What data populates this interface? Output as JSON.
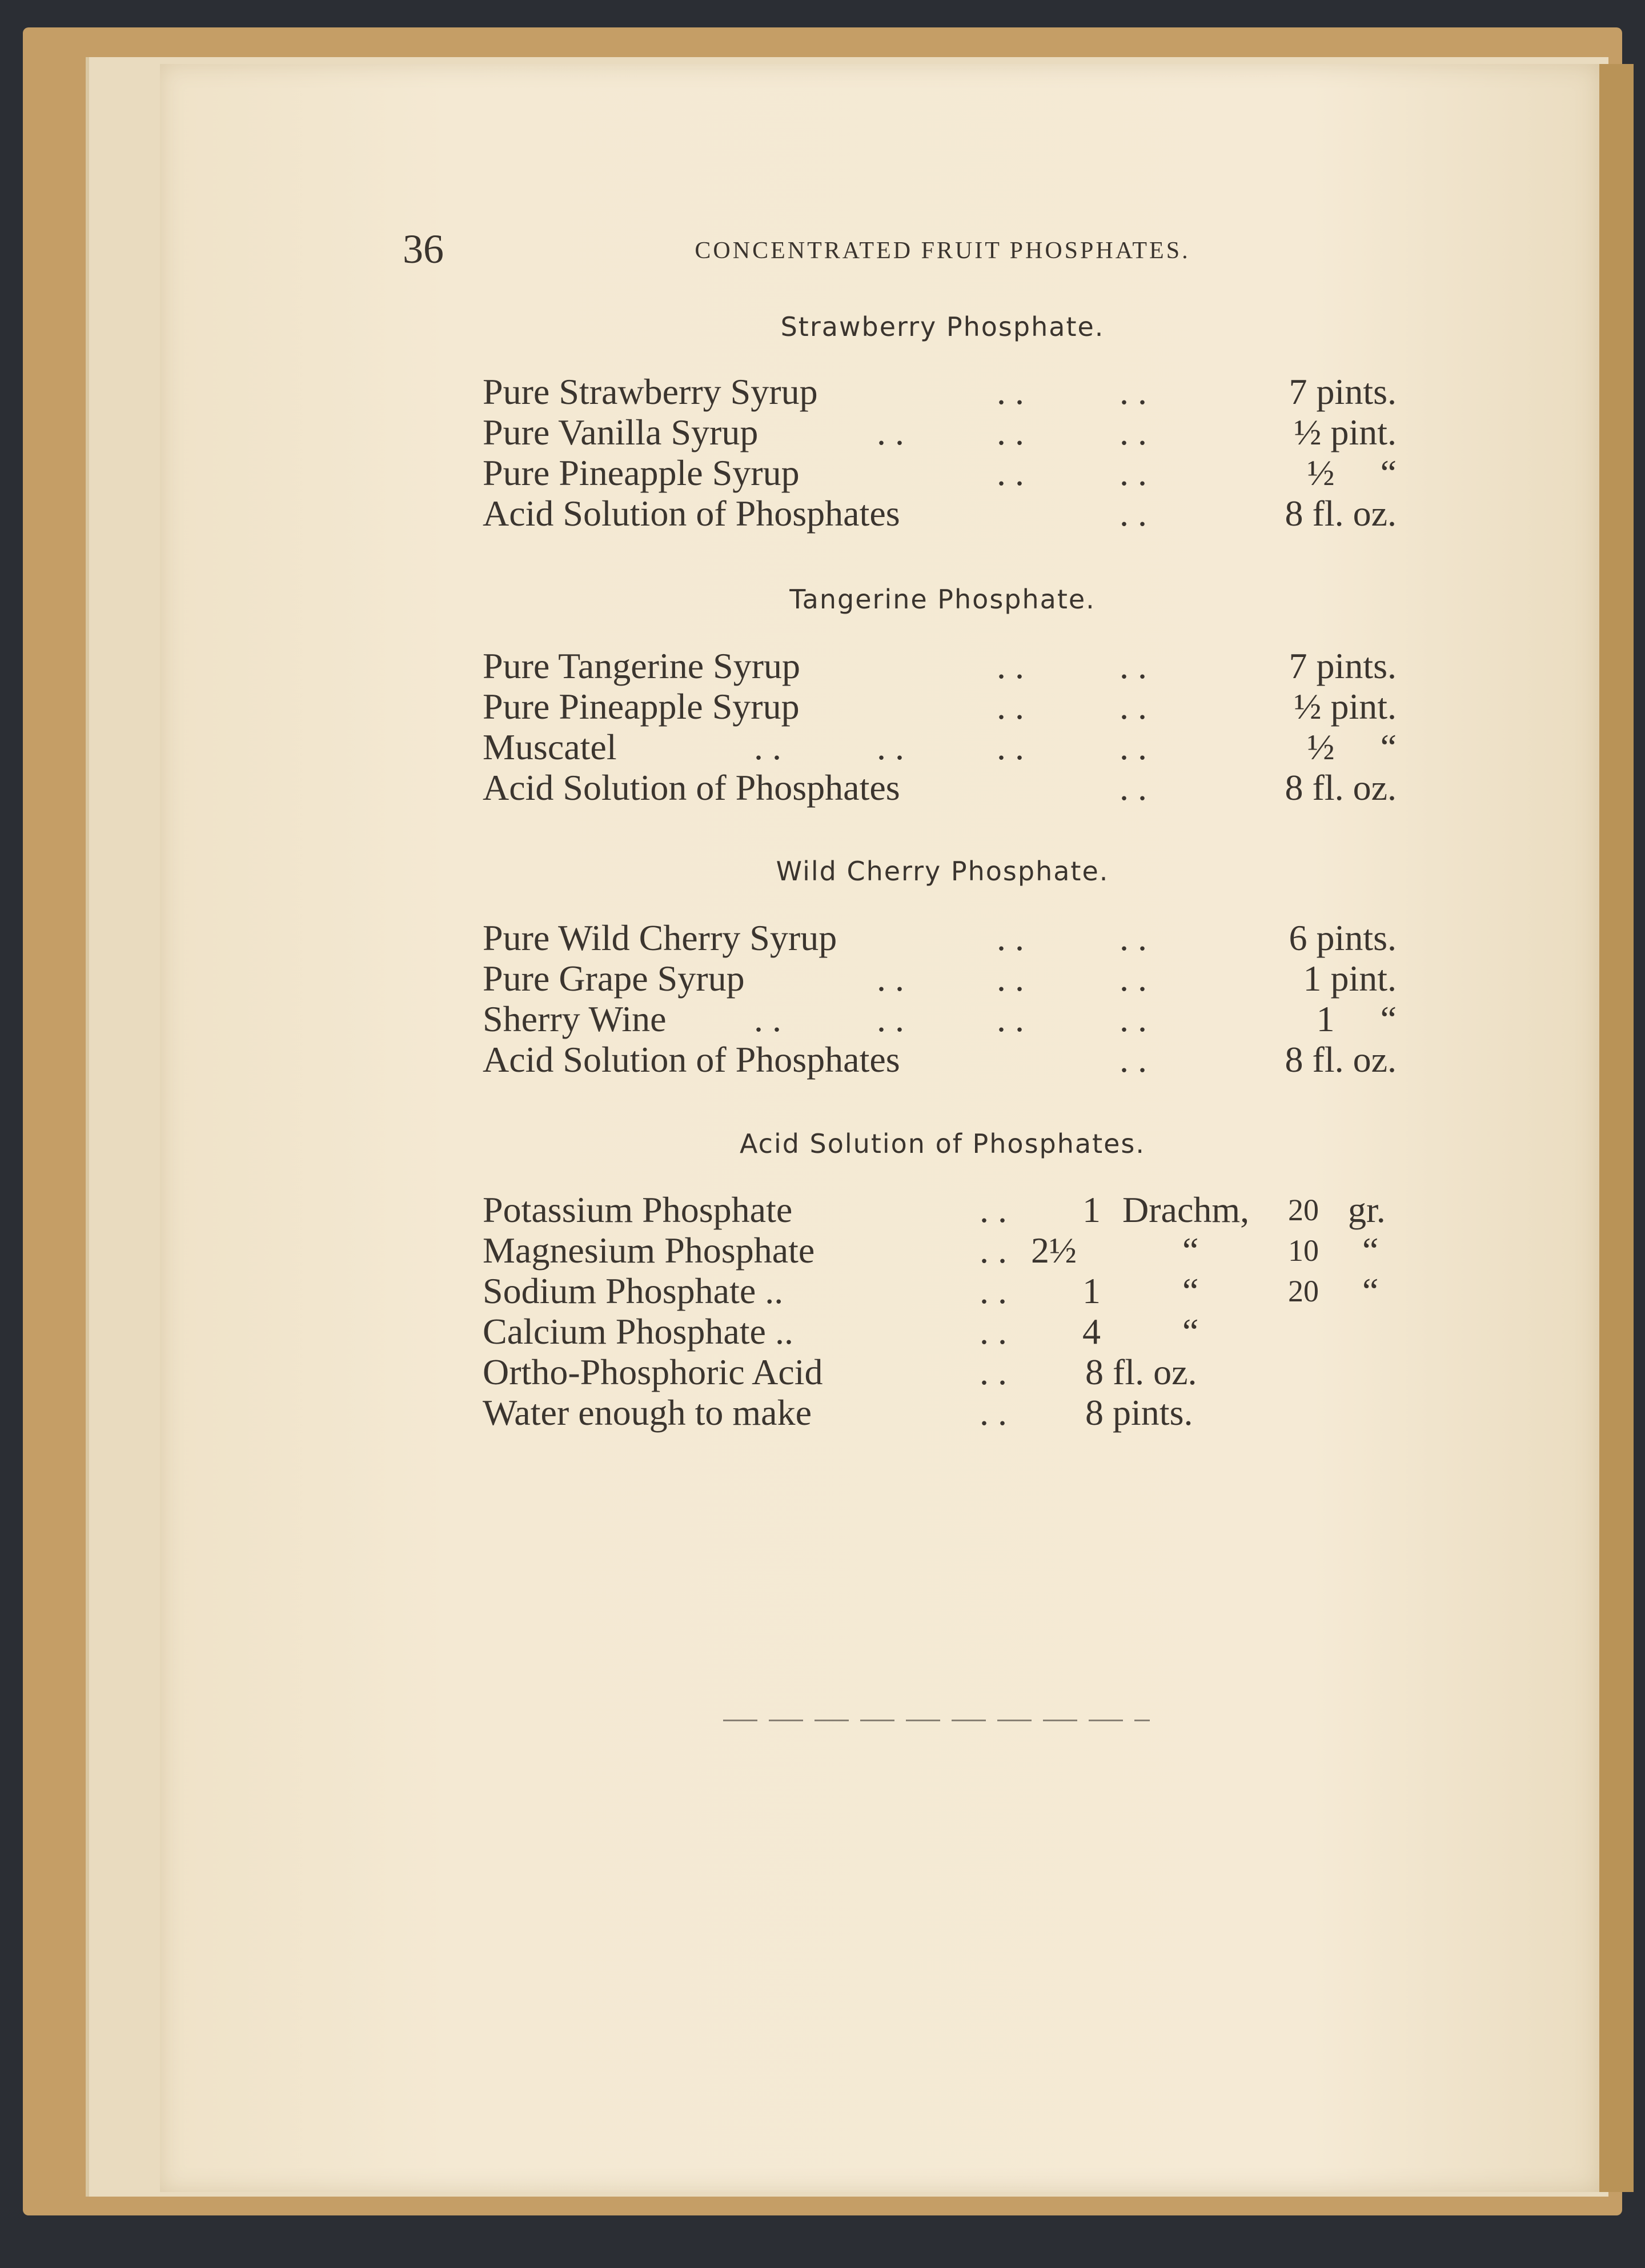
{
  "page_number": "36",
  "running_head": "CONCENTRATED FRUIT PHOSPHATES.",
  "sections": [
    {
      "title": "Strawberry Phosphate.",
      "rows": [
        {
          "name": "Pure Strawberry Syrup",
          "leaders": 2,
          "amount": "7 pints."
        },
        {
          "name": "Pure Vanilla Syrup",
          "leaders": 3,
          "amount": "½ pint."
        },
        {
          "name": "Pure Pineapple Syrup",
          "leaders": 2,
          "amount": "½     “"
        },
        {
          "name": "Acid Solution of Phosphates",
          "leaders": 1,
          "amount": "8 fl. oz."
        }
      ]
    },
    {
      "title": "Tangerine Phosphate.",
      "rows": [
        {
          "name": "Pure Tangerine Syrup",
          "leaders": 2,
          "amount": "7 pints."
        },
        {
          "name": "Pure Pineapple Syrup",
          "leaders": 2,
          "amount": "½ pint."
        },
        {
          "name": "Muscatel",
          "leaders": 4,
          "amount": "½     “"
        },
        {
          "name": "Acid Solution of Phosphates",
          "leaders": 1,
          "amount": "8 fl. oz."
        }
      ]
    },
    {
      "title": "Wild Cherry Phosphate.",
      "rows": [
        {
          "name": "Pure Wild Cherry Syrup",
          "leaders": 2,
          "amount": "6 pints."
        },
        {
          "name": "Pure Grape Syrup",
          "leaders": 3,
          "amount": "1 pint."
        },
        {
          "name": "Sherry Wine",
          "leaders": 4,
          "amount": "1     “"
        },
        {
          "name": "Acid Solution of Phosphates",
          "leaders": 1,
          "amount": "8 fl. oz."
        }
      ]
    }
  ],
  "acid_section": {
    "title": "Acid Solution of Phosphates.",
    "rows": [
      {
        "name": "Potassium Phosphate",
        "qty": "1",
        "unit": "Drachm,",
        "grains": "20",
        "grain_unit": "gr."
      },
      {
        "name": "Magnesium Phosphate",
        "qty": "2½",
        "unit": "“",
        "grains": "10",
        "grain_unit": "“"
      },
      {
        "name": "Sodium Phosphate ..",
        "qty": "1",
        "unit": "“",
        "grains": "20",
        "grain_unit": "“"
      },
      {
        "name": "Calcium Phosphate ..",
        "qty": "4",
        "unit": "“",
        "grains": "",
        "grain_unit": ""
      },
      {
        "name": "Ortho-Phosphoric Acid",
        "qty": "8 fl. oz.",
        "unit": "",
        "grains": "",
        "grain_unit": ""
      },
      {
        "name": "Water enough to make",
        "qty": "8 pints.",
        "unit": "",
        "grains": "",
        "grain_unit": ""
      }
    ]
  },
  "leader_text": ". ."
}
